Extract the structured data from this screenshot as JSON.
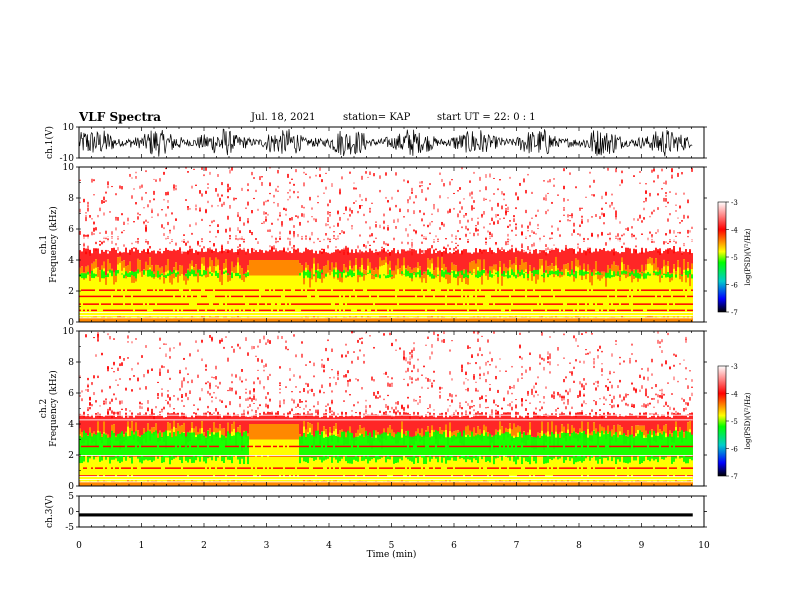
{
  "header": {
    "title": "VLF Spectra",
    "date": "Jul. 18, 2021",
    "station": "station= KAP",
    "start": "start  UT =   22: 0  : 1"
  },
  "chart_data": [
    {
      "type": "line",
      "name": "ch1-waveform",
      "ylabel": "ch.1(V)",
      "ylim": [
        -10,
        10
      ],
      "yticks": [
        -10,
        10
      ],
      "xlim": [
        0,
        10
      ],
      "note": "dense noisy waveform spanning nearly full range, ending ~9.8 min"
    },
    {
      "type": "heatmap",
      "name": "ch1-spectrogram",
      "ylabel": "ch.1\nFrequency (kHz)",
      "ylim": [
        0,
        10
      ],
      "yticks": [
        0,
        2,
        4,
        6,
        8,
        10
      ],
      "xlim": [
        0,
        10
      ],
      "colorbar": {
        "label": "log(PSD)(V²/Hz)",
        "range": [
          -7,
          -3
        ],
        "ticks": [
          -3,
          -4,
          -5,
          -6,
          -7
        ]
      }
    },
    {
      "type": "heatmap",
      "name": "ch2-spectrogram",
      "ylabel": "ch.2\nFrequency (kHz)",
      "ylim": [
        0,
        10
      ],
      "yticks": [
        0,
        2,
        4,
        6,
        8,
        10
      ],
      "xlim": [
        0,
        10
      ],
      "colorbar": {
        "label": "log(PSD)(V²/Hz)",
        "range": [
          -7,
          -3
        ],
        "ticks": [
          -3,
          -4,
          -5,
          -6,
          -7
        ]
      }
    },
    {
      "type": "line",
      "name": "ch3-waveform",
      "ylabel": "ch.3(V)",
      "ylim": [
        -5,
        5
      ],
      "yticks": [
        -5,
        0,
        5
      ],
      "xlim": [
        0,
        10
      ],
      "note": "thick band around -1 V"
    }
  ],
  "xaxis": {
    "label": "Time (min)",
    "ticks": [
      "0",
      "1",
      "2",
      "3",
      "4",
      "5",
      "6",
      "7",
      "8",
      "9",
      "10"
    ]
  },
  "colors": {
    "white": "#ffffff",
    "red": "#ff0000",
    "orange": "#ff8800",
    "yellow": "#ffff00",
    "green": "#00ff00",
    "cyan": "#00cccc",
    "blue": "#0000ff",
    "black": "#000000"
  }
}
